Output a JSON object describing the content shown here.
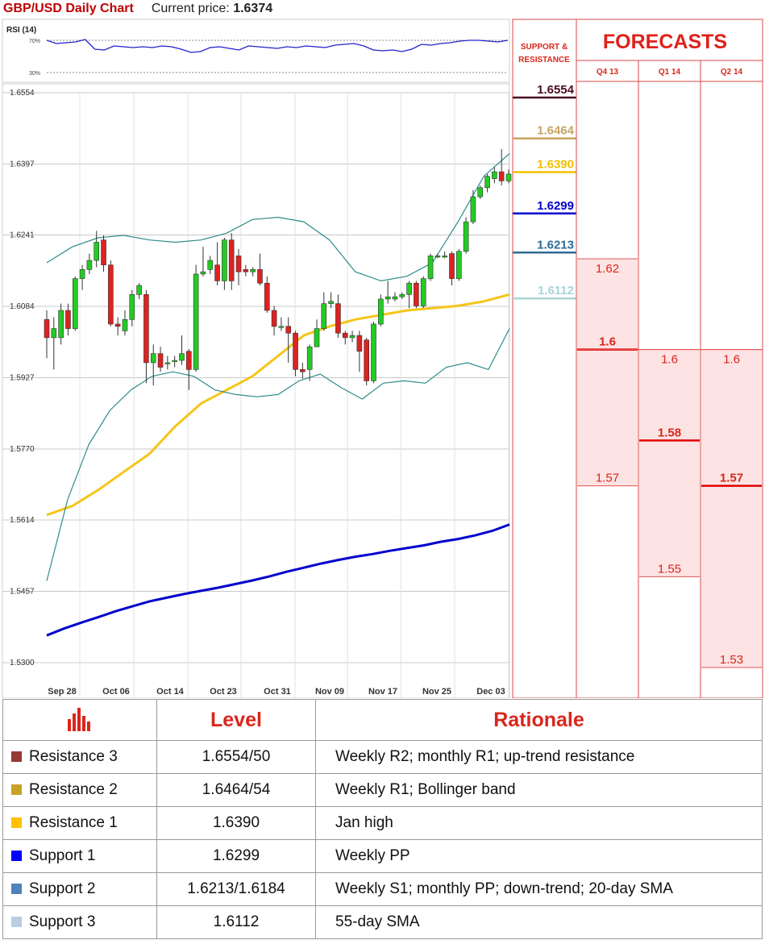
{
  "title": "GBP/USD Daily Chart",
  "current_price_label": "Current price:",
  "current_price": "1.6374",
  "rsi": {
    "label": "RSI (14)",
    "upper": "70%",
    "lower": "30%",
    "values": [
      70,
      66,
      67,
      68,
      71,
      59,
      58,
      63,
      62,
      61,
      62,
      61,
      63,
      62,
      59,
      55,
      56,
      61,
      62,
      60,
      58,
      63,
      62,
      61,
      60,
      62,
      61,
      63,
      62,
      61,
      64,
      65,
      66,
      63,
      58,
      57,
      58,
      56,
      59,
      65,
      64,
      66,
      67,
      69,
      70,
      70,
      69,
      68,
      70
    ]
  },
  "chart_data": {
    "type": "candlestick",
    "y_ticks": [
      "1.6554",
      "1.6397",
      "1.6241",
      "1.6084",
      "1.5927",
      "1.5770",
      "1.5614",
      "1.5457",
      "1.5300"
    ],
    "ylim": [
      1.53,
      1.6554
    ],
    "x_ticks": [
      "Sep 28",
      "Oct 06",
      "Oct 14",
      "Oct 23",
      "Oct 31",
      "Nov 09",
      "Nov 17",
      "Nov 25",
      "Dec 03"
    ],
    "candles": [
      [
        1.6055,
        1.6015,
        1.6075,
        1.597
      ],
      [
        1.6015,
        1.6035,
        1.606,
        1.5945
      ],
      [
        1.6015,
        1.6075,
        1.609,
        1.6
      ],
      [
        1.6075,
        1.6035,
        1.609,
        1.602
      ],
      [
        1.6035,
        1.6145,
        1.615,
        1.603
      ],
      [
        1.6145,
        1.6165,
        1.6175,
        1.612
      ],
      [
        1.6165,
        1.6185,
        1.62,
        1.6155
      ],
      [
        1.6185,
        1.6225,
        1.625,
        1.617
      ],
      [
        1.623,
        1.6175,
        1.624,
        1.616
      ],
      [
        1.6175,
        1.6045,
        1.6185,
        1.604
      ],
      [
        1.6045,
        1.604,
        1.606,
        1.602
      ],
      [
        1.603,
        1.6055,
        1.6075,
        1.602
      ],
      [
        1.6055,
        1.611,
        1.612,
        1.604
      ],
      [
        1.611,
        1.613,
        1.6135,
        1.61
      ],
      [
        1.611,
        1.596,
        1.612,
        1.5915
      ],
      [
        1.596,
        1.598,
        1.6,
        1.591
      ],
      [
        1.598,
        1.595,
        1.5995,
        1.594
      ],
      [
        1.596,
        1.596,
        1.5975,
        1.5945
      ],
      [
        1.5965,
        1.5965,
        1.5975,
        1.595
      ],
      [
        1.5965,
        1.598,
        1.602,
        1.5955
      ],
      [
        1.5985,
        1.5945,
        1.599,
        1.59
      ],
      [
        1.5945,
        1.6155,
        1.6175,
        1.594
      ],
      [
        1.6155,
        1.616,
        1.6215,
        1.615
      ],
      [
        1.6165,
        1.6185,
        1.6195,
        1.6155
      ],
      [
        1.6175,
        1.614,
        1.6225,
        1.613
      ],
      [
        1.614,
        1.623,
        1.6235,
        1.612
      ],
      [
        1.623,
        1.614,
        1.6245,
        1.612
      ],
      [
        1.6195,
        1.616,
        1.621,
        1.613
      ],
      [
        1.6165,
        1.616,
        1.6175,
        1.615
      ],
      [
        1.616,
        1.6165,
        1.617,
        1.615
      ],
      [
        1.6165,
        1.6135,
        1.62,
        1.613
      ],
      [
        1.6135,
        1.6075,
        1.615,
        1.607
      ],
      [
        1.6075,
        1.604,
        1.6085,
        1.602
      ],
      [
        1.604,
        1.604,
        1.606,
        1.603
      ],
      [
        1.604,
        1.6025,
        1.606,
        1.596
      ],
      [
        1.6025,
        1.5945,
        1.603,
        1.593
      ],
      [
        1.5945,
        1.594,
        1.596,
        1.5925
      ],
      [
        1.5945,
        1.5995,
        1.6,
        1.592
      ],
      [
        1.5995,
        1.6035,
        1.6055,
        1.5995
      ],
      [
        1.6035,
        1.609,
        1.6115,
        1.603
      ],
      [
        1.609,
        1.6095,
        1.6115,
        1.608
      ],
      [
        1.609,
        1.6025,
        1.611,
        1.6015
      ],
      [
        1.6025,
        1.6015,
        1.603,
        1.6
      ],
      [
        1.6015,
        1.602,
        1.603,
        1.6005
      ],
      [
        1.602,
        1.5985,
        1.603,
        1.594
      ],
      [
        1.601,
        1.592,
        1.6015,
        1.591
      ],
      [
        1.592,
        1.6045,
        1.605,
        1.5915
      ],
      [
        1.6045,
        1.61,
        1.611,
        1.604
      ],
      [
        1.61,
        1.6105,
        1.614,
        1.609
      ],
      [
        1.61,
        1.6105,
        1.6115,
        1.6095
      ],
      [
        1.6105,
        1.611,
        1.6115,
        1.61
      ],
      [
        1.611,
        1.6135,
        1.614,
        1.608
      ],
      [
        1.6135,
        1.6085,
        1.614,
        1.608
      ],
      [
        1.6085,
        1.6145,
        1.615,
        1.608
      ],
      [
        1.6145,
        1.6195,
        1.62,
        1.614
      ],
      [
        1.6195,
        1.6195,
        1.62,
        1.619
      ],
      [
        1.6195,
        1.6195,
        1.6205,
        1.619
      ],
      [
        1.62,
        1.6145,
        1.6205,
        1.613
      ],
      [
        1.6145,
        1.6205,
        1.621,
        1.614
      ],
      [
        1.6205,
        1.627,
        1.628,
        1.62
      ],
      [
        1.627,
        1.6325,
        1.634,
        1.6265
      ],
      [
        1.6325,
        1.6345,
        1.635,
        1.632
      ],
      [
        1.6345,
        1.637,
        1.6375,
        1.6335
      ],
      [
        1.6365,
        1.638,
        1.639,
        1.6355
      ],
      [
        1.638,
        1.636,
        1.643,
        1.635
      ],
      [
        1.636,
        1.6375,
        1.6385,
        1.6355
      ]
    ],
    "series": [
      {
        "name": "",
        "color": "#0000cd",
        "values": [
          1.536,
          1.5375,
          1.5388,
          1.54,
          1.5413,
          1.5424,
          1.5435,
          1.5443,
          1.5451,
          1.5458,
          1.5465,
          1.5473,
          1.5481,
          1.549,
          1.55,
          1.5509,
          1.5518,
          1.5526,
          1.5533,
          1.5539,
          1.5546,
          1.5552,
          1.5558,
          1.5566,
          1.5572,
          1.558,
          1.559,
          1.5604
        ]
      },
      {
        "name": "",
        "color": "#f5c518",
        "values": [
          1.5625,
          1.5645,
          1.568,
          1.572,
          1.576,
          1.582,
          1.587,
          1.59,
          1.593,
          1.5975,
          1.602,
          1.604,
          1.6055,
          1.6065,
          1.6075,
          1.608,
          1.6085,
          1.6095,
          1.611
        ]
      },
      {
        "name": "",
        "color": "#2e8b8b",
        "values": [
          1.548,
          1.566,
          1.578,
          1.5855,
          1.59,
          1.593,
          1.594,
          1.593,
          1.59,
          1.589,
          1.5885,
          1.589,
          1.592,
          1.5935,
          1.5905,
          1.588,
          1.5915,
          1.592,
          1.5915,
          1.595,
          1.596,
          1.5945,
          1.6035
        ]
      },
      {
        "name": "",
        "color": "#2e8b8b",
        "values": [
          1.618,
          1.6215,
          1.6235,
          1.624,
          1.623,
          1.6225,
          1.623,
          1.6245,
          1.6275,
          1.628,
          1.627,
          1.623,
          1.616,
          1.614,
          1.615,
          1.618,
          1.627,
          1.637,
          1.642
        ]
      }
    ]
  },
  "levels_chart": [
    {
      "value": "1.6554",
      "color": "#4a0d1e"
    },
    {
      "value": "1.6464",
      "color": "#c8a560"
    },
    {
      "value": "1.6390",
      "color": "#f0c000"
    },
    {
      "value": "1.6299",
      "color": "#0000cc"
    },
    {
      "value": "1.6213",
      "color": "#2e6b96"
    },
    {
      "value": "1.6112",
      "color": "#a8d4d8"
    }
  ],
  "panel": {
    "support_resistance_label_1": "SUPPORT &",
    "support_resistance_label_2": "RESISTANCE",
    "forecasts_label": "FORECASTS",
    "quarters": [
      "Q4 13",
      "Q1 14",
      "Q2 14"
    ]
  },
  "forecasts": [
    {
      "quarter": "Q4 13",
      "high": "1.62",
      "mid": "1.6",
      "low": "1.57",
      "range": [
        1.62,
        1.57
      ],
      "mid_value": 1.6
    },
    {
      "quarter": "Q1 14",
      "high": "1.6",
      "mid": "1.58",
      "low": "1.55",
      "range": [
        1.6,
        1.55
      ],
      "mid_value": 1.58
    },
    {
      "quarter": "Q2 14",
      "high": "1.6",
      "mid": "1.57",
      "low": "1.53",
      "range": [
        1.6,
        1.53
      ],
      "mid_value": 1.57
    }
  ],
  "table": {
    "headers": [
      "Level",
      "Rationale"
    ],
    "rows": [
      {
        "name": "Resistance 3",
        "level": "1.6554/50",
        "rationale": "Weekly R2; monthly R1; up-trend resistance",
        "color": "#953735"
      },
      {
        "name": "Resistance 2",
        "level": "1.6464/54",
        "rationale": "Weekly R1; Bollinger band",
        "color": "#c9a227"
      },
      {
        "name": "Resistance 1",
        "level": "1.6390",
        "rationale": "Jan high",
        "color": "#ffc000"
      },
      {
        "name": "Support 1",
        "level": "1.6299",
        "rationale": "Weekly PP",
        "color": "#0000ff"
      },
      {
        "name": "Support 2",
        "level": "1.6213/1.6184",
        "rationale": "Weekly S1; monthly PP; down-trend; 20-day SMA",
        "color": "#4f81bd"
      },
      {
        "name": "Support 3",
        "level": "1.6112",
        "rationale": "55-day SMA",
        "color": "#b8cce4"
      }
    ]
  }
}
